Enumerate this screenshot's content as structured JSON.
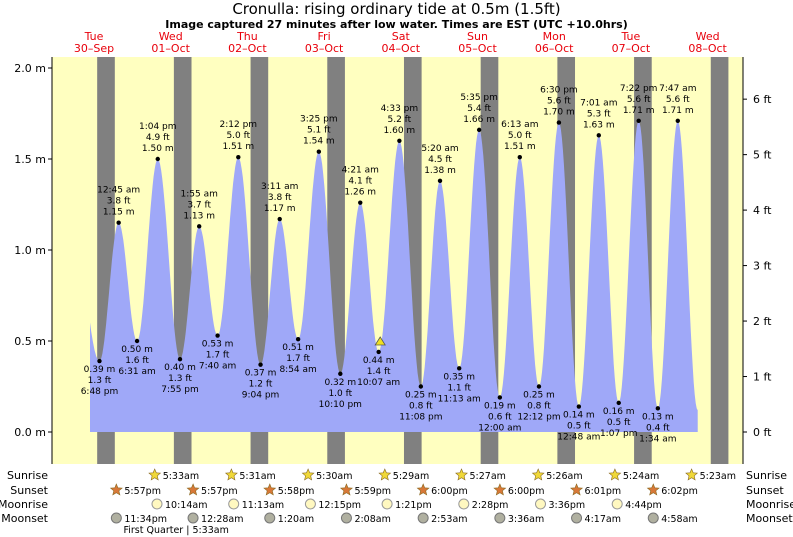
{
  "title": "Cronulla: rising  ordinary tide at 0.5m (1.5ft)",
  "subtitle": "Image captured 27 minutes after low water. Times are EST (UTC +10.0hrs)",
  "colors": {
    "day": "#ffffc0",
    "night": "#808080",
    "tide_fill": "#9fa8f8",
    "date_label": "#e8000b",
    "dot": "#000000"
  },
  "chart_data": {
    "type": "area",
    "title": "Cronulla: rising  ordinary tide at 0.5m (1.5ft)",
    "ylabel_left": "m",
    "ylabel_right": "ft",
    "ylim": [
      -0.1,
      2.12
    ],
    "ticks_m": [
      "2.0 m",
      "1.5 m",
      "1.0 m",
      "0.5 m",
      "0.0 m"
    ],
    "ticks_m_values": [
      2.0,
      1.5,
      1.0,
      0.5,
      0.0
    ],
    "ticks_ft": [
      "6 ft",
      "5 ft",
      "4 ft",
      "3 ft",
      "2 ft",
      "1 ft",
      "0 ft"
    ],
    "ticks_ft_values": [
      6,
      5,
      4,
      3,
      2,
      1,
      0
    ],
    "days": [
      {
        "day": "Tue",
        "date": "30–Sep",
        "x": 0
      },
      {
        "day": "Wed",
        "date": "01–Oct",
        "x": 1
      },
      {
        "day": "Thu",
        "date": "02–Oct",
        "x": 2
      },
      {
        "day": "Fri",
        "date": "03–Oct",
        "x": 3
      },
      {
        "day": "Sat",
        "date": "04–Oct",
        "x": 4
      },
      {
        "day": "Sun",
        "date": "05–Oct",
        "x": 5
      },
      {
        "day": "Mon",
        "date": "06–Oct",
        "x": 6
      },
      {
        "day": "Tue",
        "date": "07–Oct",
        "x": 7
      },
      {
        "day": "Wed",
        "date": "08–Oct",
        "x": 8
      }
    ],
    "nights": [
      {
        "from": 0.25,
        "to": 0.48
      },
      {
        "from": 1.25,
        "to": 1.48
      },
      {
        "from": 2.25,
        "to": 2.48
      },
      {
        "from": 3.25,
        "to": 3.48
      },
      {
        "from": 4.25,
        "to": 4.48
      },
      {
        "from": 5.25,
        "to": 5.48
      },
      {
        "from": 6.25,
        "to": 6.48
      },
      {
        "from": 7.25,
        "to": 7.48
      },
      {
        "from": 8.25,
        "to": 8.48
      }
    ],
    "extremes": [
      {
        "x": -0.15,
        "h": 1.5,
        "type": "high",
        "labels": []
      },
      {
        "x": 0.28,
        "h": 0.39,
        "type": "low",
        "labels": [
          "0.39 m",
          "1.3 ft",
          "6:48 pm"
        ]
      },
      {
        "x": 0.53,
        "h": 1.15,
        "type": "high",
        "labels": [
          "12:45 am",
          "3.8 ft",
          "1.15 m"
        ]
      },
      {
        "x": 0.77,
        "h": 0.5,
        "type": "low",
        "labels": [
          "0.50 m",
          "1.6 ft",
          "6:31 am"
        ]
      },
      {
        "x": 1.04,
        "h": 1.5,
        "type": "high",
        "labels": [
          "1:04 pm",
          "4.9 ft",
          "1.50 m"
        ]
      },
      {
        "x": 1.33,
        "h": 0.4,
        "type": "low",
        "labels": [
          "0.40 m",
          "1.3 ft",
          "7:55 pm"
        ]
      },
      {
        "x": 1.58,
        "h": 1.13,
        "type": "high",
        "labels": [
          "1:55 am",
          "3.7 ft",
          "1.13 m"
        ]
      },
      {
        "x": 1.82,
        "h": 0.53,
        "type": "low",
        "labels": [
          "0.53 m",
          "1.7 ft",
          "7:40 am"
        ]
      },
      {
        "x": 2.09,
        "h": 1.51,
        "type": "high",
        "labels": [
          "2:12 pm",
          "5.0 ft",
          "1.51 m"
        ]
      },
      {
        "x": 2.38,
        "h": 0.37,
        "type": "low",
        "labels": [
          "0.37 m",
          "1.2 ft",
          "9:04 pm"
        ]
      },
      {
        "x": 2.63,
        "h": 1.17,
        "type": "high",
        "labels": [
          "3:11 am",
          "3.8 ft",
          "1.17 m"
        ]
      },
      {
        "x": 2.87,
        "h": 0.51,
        "type": "low",
        "labels": [
          "0.51 m",
          "1.7 ft",
          "8:54 am"
        ]
      },
      {
        "x": 3.14,
        "h": 1.54,
        "type": "high",
        "labels": [
          "3:25 pm",
          "5.1 ft",
          "1.54 m"
        ]
      },
      {
        "x": 3.42,
        "h": 0.32,
        "type": "low",
        "labels": [
          "0.32 m",
          "1.0 ft",
          "10:10 pm"
        ]
      },
      {
        "x": 3.68,
        "h": 1.26,
        "type": "high",
        "labels": [
          "4:21 am",
          "4.1 ft",
          "1.26 m"
        ]
      },
      {
        "x": 3.92,
        "h": 0.44,
        "type": "low",
        "labels": [
          "0.44 m",
          "1.4 ft",
          "10:07 am"
        ]
      },
      {
        "x": 4.19,
        "h": 1.6,
        "type": "high",
        "labels": [
          "4:33 pm",
          "5.2 ft",
          "1.60 m"
        ]
      },
      {
        "x": 4.47,
        "h": 0.25,
        "type": "low",
        "labels": [
          "0.25 m",
          "0.8 ft",
          "11:08 pm"
        ]
      },
      {
        "x": 4.72,
        "h": 1.38,
        "type": "high",
        "labels": [
          "5:20 am",
          "4.5 ft",
          "1.38 m"
        ]
      },
      {
        "x": 4.97,
        "h": 0.35,
        "type": "low",
        "labels": [
          "0.35 m",
          "1.1 ft",
          "11:13 am"
        ]
      },
      {
        "x": 5.23,
        "h": 1.66,
        "type": "high",
        "labels": [
          "5:35 pm",
          "5.4 ft",
          "1.66 m"
        ]
      },
      {
        "x": 5.5,
        "h": 0.19,
        "type": "low",
        "labels": [
          "0.19 m",
          "0.6 ft",
          "12:00 am"
        ]
      },
      {
        "x": 5.76,
        "h": 1.51,
        "type": "high",
        "labels": [
          "6:13 am",
          "5.0 ft",
          "1.51 m"
        ]
      },
      {
        "x": 6.01,
        "h": 0.25,
        "type": "low",
        "labels": [
          "0.25 m",
          "0.8 ft",
          "12:12 pm"
        ]
      },
      {
        "x": 6.27,
        "h": 1.7,
        "type": "high",
        "labels": [
          "6:30 pm",
          "5.6 ft",
          "1.70 m"
        ]
      },
      {
        "x": 6.53,
        "h": 0.14,
        "type": "low",
        "labels": [
          "0.14 m",
          "0.5 ft",
          "12:48 am"
        ]
      },
      {
        "x": 6.79,
        "h": 1.63,
        "type": "high",
        "labels": [
          "7:01 am",
          "5.3 ft",
          "1.63 m"
        ]
      },
      {
        "x": 7.05,
        "h": 0.16,
        "type": "low",
        "labels": [
          "0.16 m",
          "0.5 ft",
          "1:07 pm"
        ]
      },
      {
        "x": 7.31,
        "h": 1.71,
        "type": "high",
        "labels": [
          "7:22 pm",
          "5.6 ft",
          "1.71 m"
        ]
      },
      {
        "x": 7.56,
        "h": 0.13,
        "type": "low",
        "labels": [
          "0.13 m",
          "0.4 ft",
          "1:34 am"
        ]
      },
      {
        "x": 7.82,
        "h": 1.71,
        "type": "high",
        "labels": [
          "7:47 am",
          "5.6 ft",
          "1.71 m"
        ]
      },
      {
        "x": 8.08,
        "h": 0.12,
        "type": "low",
        "labels": []
      }
    ],
    "now_marker": {
      "x": 3.94,
      "h": 0.5
    },
    "sun_moon_rows": [
      {
        "label": "Sunrise",
        "type": "sunrise",
        "events": [
          {
            "x": 1.0,
            "text": "5:33am"
          },
          {
            "x": 2.0,
            "text": "5:31am"
          },
          {
            "x": 3.0,
            "text": "5:30am"
          },
          {
            "x": 4.0,
            "text": "5:29am"
          },
          {
            "x": 5.0,
            "text": "5:27am"
          },
          {
            "x": 6.0,
            "text": "5:26am"
          },
          {
            "x": 7.0,
            "text": "5:24am"
          },
          {
            "x": 8.0,
            "text": "5:23am"
          }
        ]
      },
      {
        "label": "Sunset",
        "type": "sunset",
        "events": [
          {
            "x": 0.5,
            "text": "5:57pm"
          },
          {
            "x": 1.5,
            "text": "5:57pm"
          },
          {
            "x": 2.5,
            "text": "5:58pm"
          },
          {
            "x": 3.5,
            "text": "5:59pm"
          },
          {
            "x": 4.5,
            "text": "6:00pm"
          },
          {
            "x": 5.5,
            "text": "6:00pm"
          },
          {
            "x": 6.5,
            "text": "6:01pm"
          },
          {
            "x": 7.5,
            "text": "6:02pm"
          }
        ]
      },
      {
        "label": "Moonrise",
        "type": "moonrise",
        "events": [
          {
            "x": 1.03,
            "text": "10:14am"
          },
          {
            "x": 2.03,
            "text": "11:13am"
          },
          {
            "x": 3.03,
            "text": "12:15pm"
          },
          {
            "x": 4.03,
            "text": "1:21pm"
          },
          {
            "x": 5.03,
            "text": "2:28pm"
          },
          {
            "x": 6.03,
            "text": "3:36pm"
          },
          {
            "x": 7.03,
            "text": "4:44pm"
          }
        ]
      },
      {
        "label": "Moonset",
        "type": "moonset",
        "events": [
          {
            "x": 0.5,
            "text": "11:34pm"
          },
          {
            "x": 1.5,
            "text": "12:28am"
          },
          {
            "x": 2.5,
            "text": "1:20am"
          },
          {
            "x": 3.5,
            "text": "2:08am"
          },
          {
            "x": 4.5,
            "text": "2:53am"
          },
          {
            "x": 5.5,
            "text": "3:36am"
          },
          {
            "x": 6.5,
            "text": "4:17am"
          },
          {
            "x": 7.5,
            "text": "4:58am"
          }
        ]
      }
    ],
    "moon_phase": {
      "text": "First Quarter | 5:33am",
      "x": 1.28
    }
  }
}
